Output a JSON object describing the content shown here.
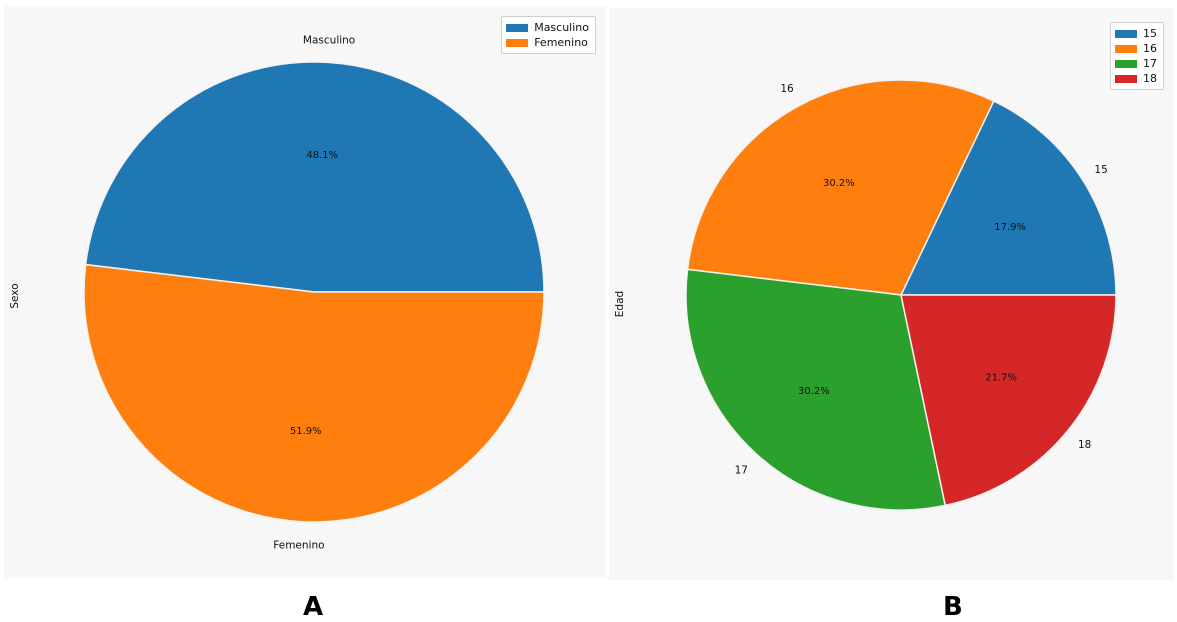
{
  "chart_data": [
    {
      "type": "pie",
      "panel_label": "A",
      "ylabel": "Sexo",
      "categories": [
        "Masculino",
        "Femenino"
      ],
      "values": [
        48.1,
        51.9
      ],
      "slice_labels": [
        "Masculino",
        "Femenino"
      ],
      "pct_labels": [
        "48.1%",
        "51.9%"
      ],
      "colors": [
        "#1f77b4",
        "#ff7f0e"
      ],
      "legend": [
        "Masculino",
        "Femenino"
      ],
      "legend_position": "top-right",
      "start_angle_deg": 0,
      "direction": "counterclockwise"
    },
    {
      "type": "pie",
      "panel_label": "B",
      "ylabel": "Edad",
      "categories": [
        "15",
        "16",
        "17",
        "18"
      ],
      "values": [
        17.9,
        30.2,
        30.2,
        21.7
      ],
      "slice_labels": [
        "15",
        "16",
        "17",
        "18"
      ],
      "pct_labels": [
        "17.9%",
        "30.2%",
        "30.2%",
        "21.7%"
      ],
      "colors": [
        "#1f77b4",
        "#ff7f0e",
        "#2ca02c",
        "#d62728"
      ],
      "legend": [
        "15",
        "16",
        "17",
        "18"
      ],
      "legend_position": "top-right",
      "start_angle_deg": 0,
      "direction": "counterclockwise"
    }
  ]
}
